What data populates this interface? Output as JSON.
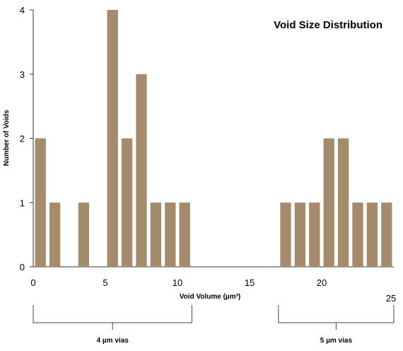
{
  "chart_data": {
    "type": "bar",
    "title": "Void Size Distribution",
    "xlabel": "Void Volume (µm³)",
    "ylabel": "Number of Voids",
    "xlim": [
      0,
      25
    ],
    "ylim": [
      0,
      4
    ],
    "xticks": [
      0,
      5,
      10,
      15,
      20,
      25
    ],
    "yticks": [
      0,
      1,
      2,
      3,
      4
    ],
    "grid": false,
    "bar_color": "#a38b6b",
    "x": [
      0.5,
      1.5,
      3.5,
      5.5,
      6.5,
      7.5,
      8.5,
      9.5,
      10.5,
      17.5,
      18.5,
      19.5,
      20.5,
      21.5,
      22.5,
      23.5,
      24.5
    ],
    "values": [
      2,
      1,
      1,
      4,
      2,
      3,
      1,
      1,
      1,
      1,
      1,
      1,
      2,
      2,
      1,
      1,
      1
    ],
    "groups": [
      {
        "label": "4 µm vias",
        "range": [
          0,
          11
        ]
      },
      {
        "label": "5 µm vias",
        "range": [
          17,
          25
        ]
      }
    ]
  }
}
